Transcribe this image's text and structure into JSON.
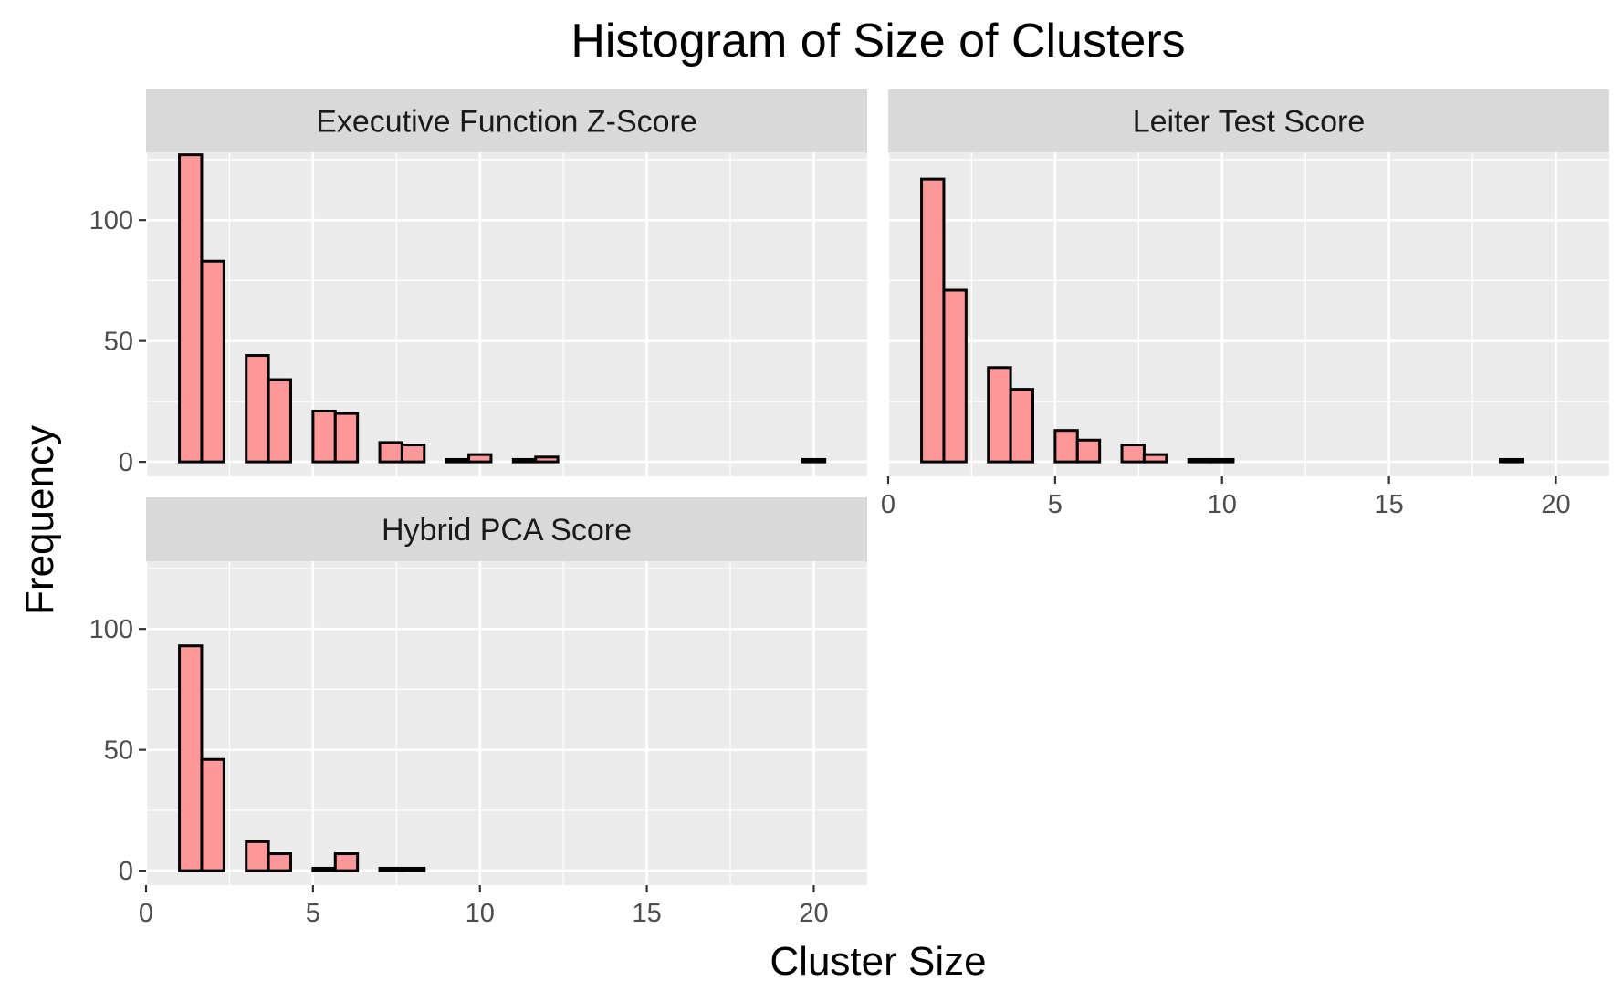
{
  "chart_data": {
    "type": "bar",
    "title": "Histogram of Size of Clusters",
    "xlabel": "Cluster Size",
    "ylabel": "Frequency",
    "xlim": [
      0,
      21.6
    ],
    "ylim": [
      -6,
      128
    ],
    "x_ticks": [
      "0",
      "5",
      "10",
      "15",
      "20"
    ],
    "y_ticks": [
      "0",
      "50",
      "100"
    ],
    "grid": true,
    "bin_width": 0.6667,
    "bin_start": 1,
    "colors": {
      "bar_fill": "#FF9999",
      "bar_stroke": "#000000",
      "panel_bg": "#EBEBEB",
      "strip_bg": "#D9D9D9",
      "grid": "#FFFFFF"
    },
    "panels": [
      {
        "name": "Executive Function Z-Score",
        "values": [
          127,
          83,
          0,
          44,
          34,
          0,
          21,
          20,
          0,
          8,
          7,
          0,
          1,
          3,
          0,
          1,
          2,
          0,
          0,
          0,
          0,
          0,
          0,
          0,
          0,
          0,
          0,
          0,
          1
        ]
      },
      {
        "name": "Leiter Test Score",
        "values": [
          117,
          71,
          0,
          39,
          30,
          0,
          13,
          9,
          0,
          7,
          3,
          0,
          1,
          1,
          0,
          0,
          0,
          0,
          0,
          0,
          0,
          0,
          0,
          0,
          0,
          0,
          1,
          0,
          0
        ]
      },
      {
        "name": "Hybrid PCA Score",
        "values": [
          93,
          46,
          0,
          12,
          7,
          0,
          1,
          7,
          0,
          1,
          1,
          0,
          0,
          0,
          0,
          0,
          0,
          0,
          0,
          0,
          0,
          0,
          0,
          0,
          0,
          0,
          0,
          0,
          0
        ]
      }
    ]
  }
}
